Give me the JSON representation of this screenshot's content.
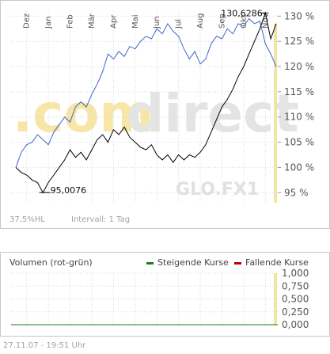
{
  "watermark": {
    "brand_left": ".com",
    "brand_right": "direct",
    "code": "GLO.FX1"
  },
  "footer": {
    "ratio": "37,5%HL",
    "interval": "Intervall: 1 Tag",
    "timestamp": "27.11.07 - 19:51 Uhr"
  },
  "colors": {
    "blue_series": "#3d66c9",
    "black_series": "#000000",
    "gain": "#1f7a1f",
    "loss": "#c00000",
    "highlight": "#f3e3a6"
  },
  "chart_data": [
    {
      "type": "line",
      "title": "",
      "x_tick_labels": [
        "Dez",
        "Jan",
        "Feb",
        "Mär",
        "Apr",
        "Mai",
        "Jun",
        "Jul",
        "Aug",
        "Sep",
        "Okt",
        "Nov"
      ],
      "x_range": [
        0,
        12
      ],
      "y_tick_labels": [
        "95 %",
        "100 %",
        "105 %",
        "110 %",
        "115 %",
        "120 %",
        "125 %",
        "130 %"
      ],
      "ylim": [
        93,
        131
      ],
      "grid": true,
      "annotations": [
        {
          "text": "130,6286",
          "x": 11.5,
          "y": 130.63
        },
        {
          "text": "95,0076",
          "x": 1.3,
          "y": 95.01
        }
      ],
      "series": [
        {
          "points": [
            [
              0.0,
              100.0
            ],
            [
              0.25,
              103.0
            ],
            [
              0.5,
              104.5
            ],
            [
              0.75,
              105.0
            ],
            [
              1.0,
              106.5
            ],
            [
              1.25,
              105.5
            ],
            [
              1.5,
              104.5
            ],
            [
              1.75,
              107.0
            ],
            [
              2.0,
              108.5
            ],
            [
              2.25,
              110.0
            ],
            [
              2.5,
              109.0
            ],
            [
              2.75,
              112.0
            ],
            [
              3.0,
              113.0
            ],
            [
              3.25,
              112.0
            ],
            [
              3.5,
              114.5
            ],
            [
              3.75,
              116.5
            ],
            [
              4.0,
              119.0
            ],
            [
              4.25,
              122.5
            ],
            [
              4.5,
              121.5
            ],
            [
              4.75,
              123.0
            ],
            [
              5.0,
              122.0
            ],
            [
              5.25,
              124.0
            ],
            [
              5.5,
              123.5
            ],
            [
              5.75,
              125.0
            ],
            [
              6.0,
              126.0
            ],
            [
              6.25,
              125.5
            ],
            [
              6.5,
              127.5
            ],
            [
              6.75,
              126.5
            ],
            [
              7.0,
              128.5
            ],
            [
              7.25,
              127.0
            ],
            [
              7.5,
              126.0
            ],
            [
              7.75,
              123.5
            ],
            [
              8.0,
              121.5
            ],
            [
              8.25,
              123.0
            ],
            [
              8.5,
              120.5
            ],
            [
              8.75,
              121.5
            ],
            [
              9.0,
              124.5
            ],
            [
              9.25,
              126.0
            ],
            [
              9.5,
              125.5
            ],
            [
              9.75,
              127.5
            ],
            [
              10.0,
              126.5
            ],
            [
              10.25,
              128.5
            ],
            [
              10.5,
              128.0
            ],
            [
              10.75,
              129.5
            ],
            [
              11.0,
              128.5
            ],
            [
              11.25,
              129.0
            ],
            [
              11.5,
              124.5
            ],
            [
              11.75,
              122.5
            ],
            [
              12.0,
              120.0
            ]
          ]
        },
        {
          "points": [
            [
              0.0,
              100.0
            ],
            [
              0.25,
              99.0
            ],
            [
              0.5,
              98.5
            ],
            [
              0.75,
              97.5
            ],
            [
              1.0,
              97.0
            ],
            [
              1.25,
              95.01
            ],
            [
              1.5,
              97.0
            ],
            [
              1.75,
              98.5
            ],
            [
              2.0,
              100.0
            ],
            [
              2.25,
              101.5
            ],
            [
              2.5,
              103.5
            ],
            [
              2.75,
              102.0
            ],
            [
              3.0,
              103.0
            ],
            [
              3.25,
              101.5
            ],
            [
              3.5,
              103.5
            ],
            [
              3.75,
              105.5
            ],
            [
              4.0,
              106.5
            ],
            [
              4.25,
              105.0
            ],
            [
              4.5,
              107.5
            ],
            [
              4.75,
              106.5
            ],
            [
              5.0,
              108.0
            ],
            [
              5.25,
              106.0
            ],
            [
              5.5,
              105.0
            ],
            [
              5.75,
              104.0
            ],
            [
              6.0,
              103.5
            ],
            [
              6.25,
              104.5
            ],
            [
              6.5,
              102.5
            ],
            [
              6.75,
              101.5
            ],
            [
              7.0,
              102.5
            ],
            [
              7.25,
              101.0
            ],
            [
              7.5,
              102.5
            ],
            [
              7.75,
              101.5
            ],
            [
              8.0,
              102.5
            ],
            [
              8.25,
              102.0
            ],
            [
              8.5,
              103.0
            ],
            [
              8.75,
              104.5
            ],
            [
              9.0,
              107.0
            ],
            [
              9.25,
              109.5
            ],
            [
              9.5,
              112.0
            ],
            [
              9.75,
              113.5
            ],
            [
              10.0,
              115.5
            ],
            [
              10.25,
              118.0
            ],
            [
              10.5,
              120.0
            ],
            [
              10.75,
              122.5
            ],
            [
              11.0,
              125.0
            ],
            [
              11.25,
              127.5
            ],
            [
              11.5,
              130.63
            ],
            [
              11.75,
              125.5
            ],
            [
              12.0,
              128.5
            ]
          ]
        }
      ]
    },
    {
      "type": "bar",
      "title": "Volumen (rot-grün)",
      "legend": [
        {
          "name": "Steigende Kurse",
          "color": "#1f7a1f"
        },
        {
          "name": "Fallende Kurse",
          "color": "#c00000"
        }
      ],
      "y_tick_labels": [
        "0,000",
        "0,250",
        "0,500",
        "0,750",
        "1,000"
      ],
      "ylim": [
        0,
        1
      ],
      "values": [
        0,
        0,
        0,
        0,
        0,
        0,
        0,
        0,
        0,
        0,
        0,
        0
      ],
      "grid": true
    }
  ]
}
